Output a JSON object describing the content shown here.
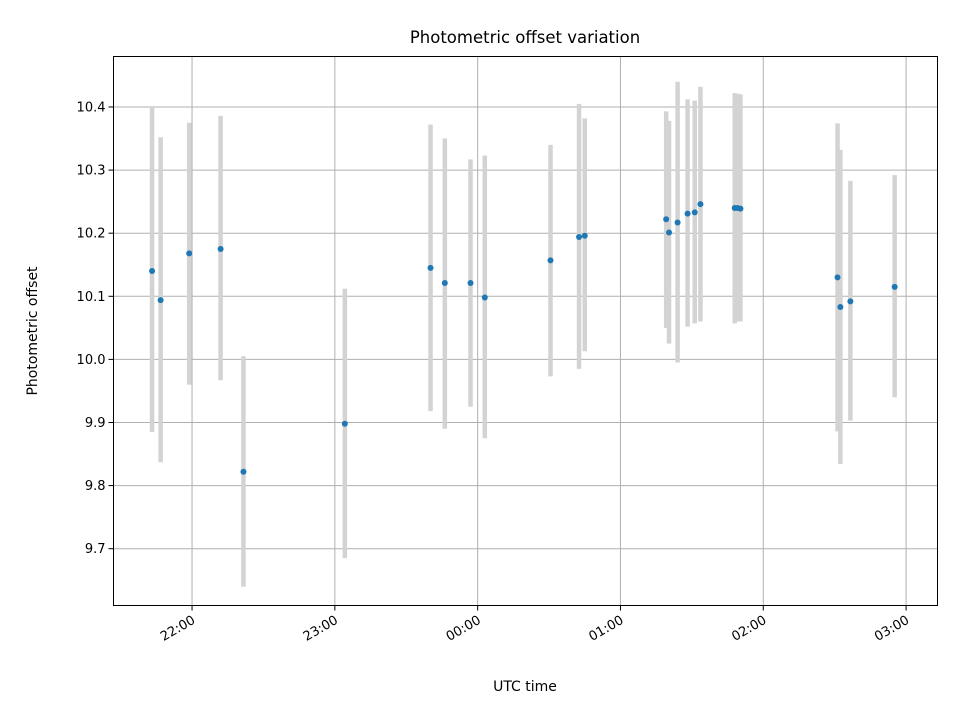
{
  "chart_data": {
    "type": "scatter",
    "title": "Photometric offset variation",
    "xlabel": "UTC time",
    "ylabel": "Photometric offset",
    "x_axis_kind": "time",
    "x_ticks": [
      "22:00",
      "23:00",
      "00:00",
      "01:00",
      "02:00",
      "03:00"
    ],
    "x_tick_hours": [
      22,
      23,
      24,
      25,
      26,
      27
    ],
    "xlim": [
      21.45,
      27.22
    ],
    "ylim": [
      9.61,
      10.48
    ],
    "y_ticks": [
      9.7,
      9.8,
      9.9,
      10.0,
      10.1,
      10.2,
      10.3,
      10.4
    ],
    "grid": true,
    "marker_color": "#1f77b4",
    "errorbar_color": "#d3d3d3",
    "points": [
      {
        "x": 21.72,
        "y": 10.14,
        "ylo": 9.885,
        "yhi": 10.4
      },
      {
        "x": 21.78,
        "y": 10.094,
        "ylo": 9.837,
        "yhi": 10.352
      },
      {
        "x": 21.98,
        "y": 10.168,
        "ylo": 9.96,
        "yhi": 10.375
      },
      {
        "x": 22.2,
        "y": 10.175,
        "ylo": 9.967,
        "yhi": 10.386
      },
      {
        "x": 22.36,
        "y": 9.822,
        "ylo": 9.64,
        "yhi": 10.005
      },
      {
        "x": 23.07,
        "y": 9.898,
        "ylo": 9.685,
        "yhi": 10.112
      },
      {
        "x": 23.67,
        "y": 10.145,
        "ylo": 9.918,
        "yhi": 10.372
      },
      {
        "x": 23.77,
        "y": 10.121,
        "ylo": 9.89,
        "yhi": 10.35
      },
      {
        "x": 23.95,
        "y": 10.121,
        "ylo": 9.925,
        "yhi": 10.317
      },
      {
        "x": 24.05,
        "y": 10.098,
        "ylo": 9.875,
        "yhi": 10.323
      },
      {
        "x": 24.51,
        "y": 10.157,
        "ylo": 9.973,
        "yhi": 10.34
      },
      {
        "x": 24.71,
        "y": 10.194,
        "ylo": 9.985,
        "yhi": 10.405
      },
      {
        "x": 24.75,
        "y": 10.196,
        "ylo": 10.013,
        "yhi": 10.382
      },
      {
        "x": 25.32,
        "y": 10.222,
        "ylo": 10.05,
        "yhi": 10.393
      },
      {
        "x": 25.34,
        "y": 10.201,
        "ylo": 10.025,
        "yhi": 10.378
      },
      {
        "x": 25.4,
        "y": 10.217,
        "ylo": 9.995,
        "yhi": 10.44
      },
      {
        "x": 25.47,
        "y": 10.231,
        "ylo": 10.052,
        "yhi": 10.412
      },
      {
        "x": 25.52,
        "y": 10.233,
        "ylo": 10.057,
        "yhi": 10.41
      },
      {
        "x": 25.56,
        "y": 10.246,
        "ylo": 10.06,
        "yhi": 10.432
      },
      {
        "x": 25.8,
        "y": 10.24,
        "ylo": 10.057,
        "yhi": 10.422
      },
      {
        "x": 25.82,
        "y": 10.24,
        "ylo": 10.06,
        "yhi": 10.421
      },
      {
        "x": 25.84,
        "y": 10.239,
        "ylo": 10.06,
        "yhi": 10.42
      },
      {
        "x": 26.52,
        "y": 10.13,
        "ylo": 9.886,
        "yhi": 10.374
      },
      {
        "x": 26.54,
        "y": 10.083,
        "ylo": 9.834,
        "yhi": 10.332
      },
      {
        "x": 26.61,
        "y": 10.092,
        "ylo": 9.903,
        "yhi": 10.283
      },
      {
        "x": 26.92,
        "y": 10.115,
        "ylo": 9.94,
        "yhi": 10.292
      }
    ]
  }
}
